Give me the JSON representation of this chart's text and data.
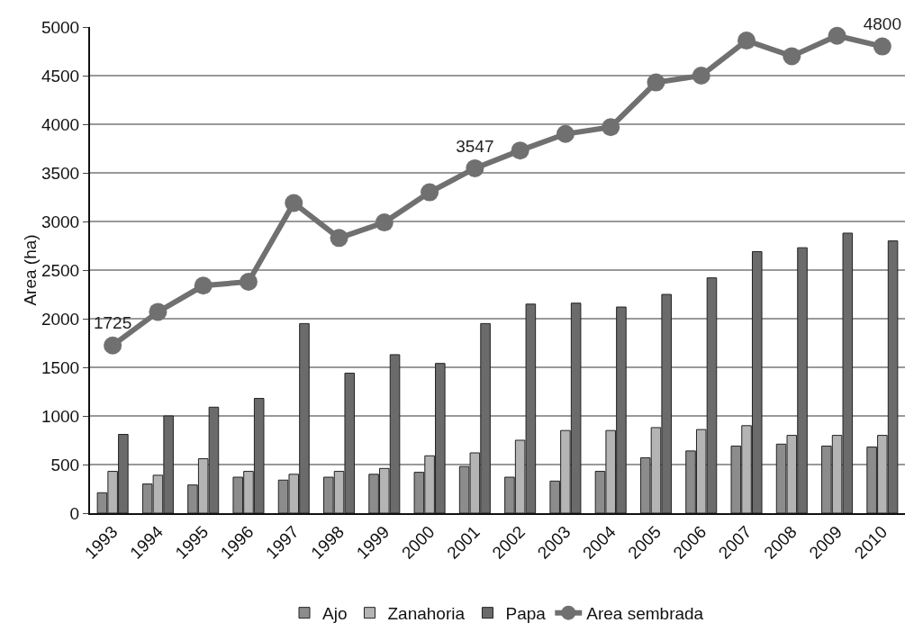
{
  "chart_data": {
    "type": "bar",
    "ylabel": "Area (ha)",
    "categories": [
      "1993",
      "1994",
      "1995",
      "1996",
      "1997",
      "1998",
      "1999",
      "2000",
      "2001",
      "2002",
      "2003",
      "2004",
      "2005",
      "2006",
      "2007",
      "2008",
      "2009",
      "2010"
    ],
    "series": [
      {
        "name": "Ajo",
        "color": "#8c8c8c",
        "values": [
          210,
          300,
          290,
          370,
          340,
          370,
          400,
          420,
          480,
          370,
          330,
          430,
          570,
          640,
          690,
          710,
          690,
          680
        ]
      },
      {
        "name": "Zanahoria",
        "color": "#b4b4b4",
        "values": [
          430,
          390,
          560,
          430,
          400,
          430,
          460,
          590,
          620,
          750,
          850,
          850,
          880,
          860,
          900,
          800,
          800,
          800
        ]
      },
      {
        "name": "Papa",
        "color": "#6b6b6b",
        "values": [
          810,
          1000,
          1090,
          1180,
          1950,
          1440,
          1630,
          1540,
          1950,
          2150,
          2160,
          2120,
          2250,
          2420,
          2690,
          2730,
          2880,
          2800
        ]
      },
      {
        "name": "Area sembrada",
        "type": "line",
        "color": "#707070",
        "marker": "circle",
        "values": [
          1725,
          2070,
          2340,
          2380,
          3190,
          2830,
          2990,
          3300,
          3547,
          3730,
          3900,
          3970,
          4430,
          4500,
          4860,
          4700,
          4910,
          4800
        ],
        "value_labels": [
          "1725",
          null,
          null,
          null,
          null,
          null,
          null,
          null,
          "3547",
          null,
          null,
          null,
          null,
          null,
          null,
          null,
          null,
          "4800"
        ]
      }
    ],
    "ylim": [
      0,
      5000
    ],
    "yticks": [
      0,
      500,
      1000,
      1500,
      2000,
      2500,
      3000,
      3500,
      4000,
      4500,
      5000
    ],
    "grid": "y",
    "legend": "bottom"
  }
}
